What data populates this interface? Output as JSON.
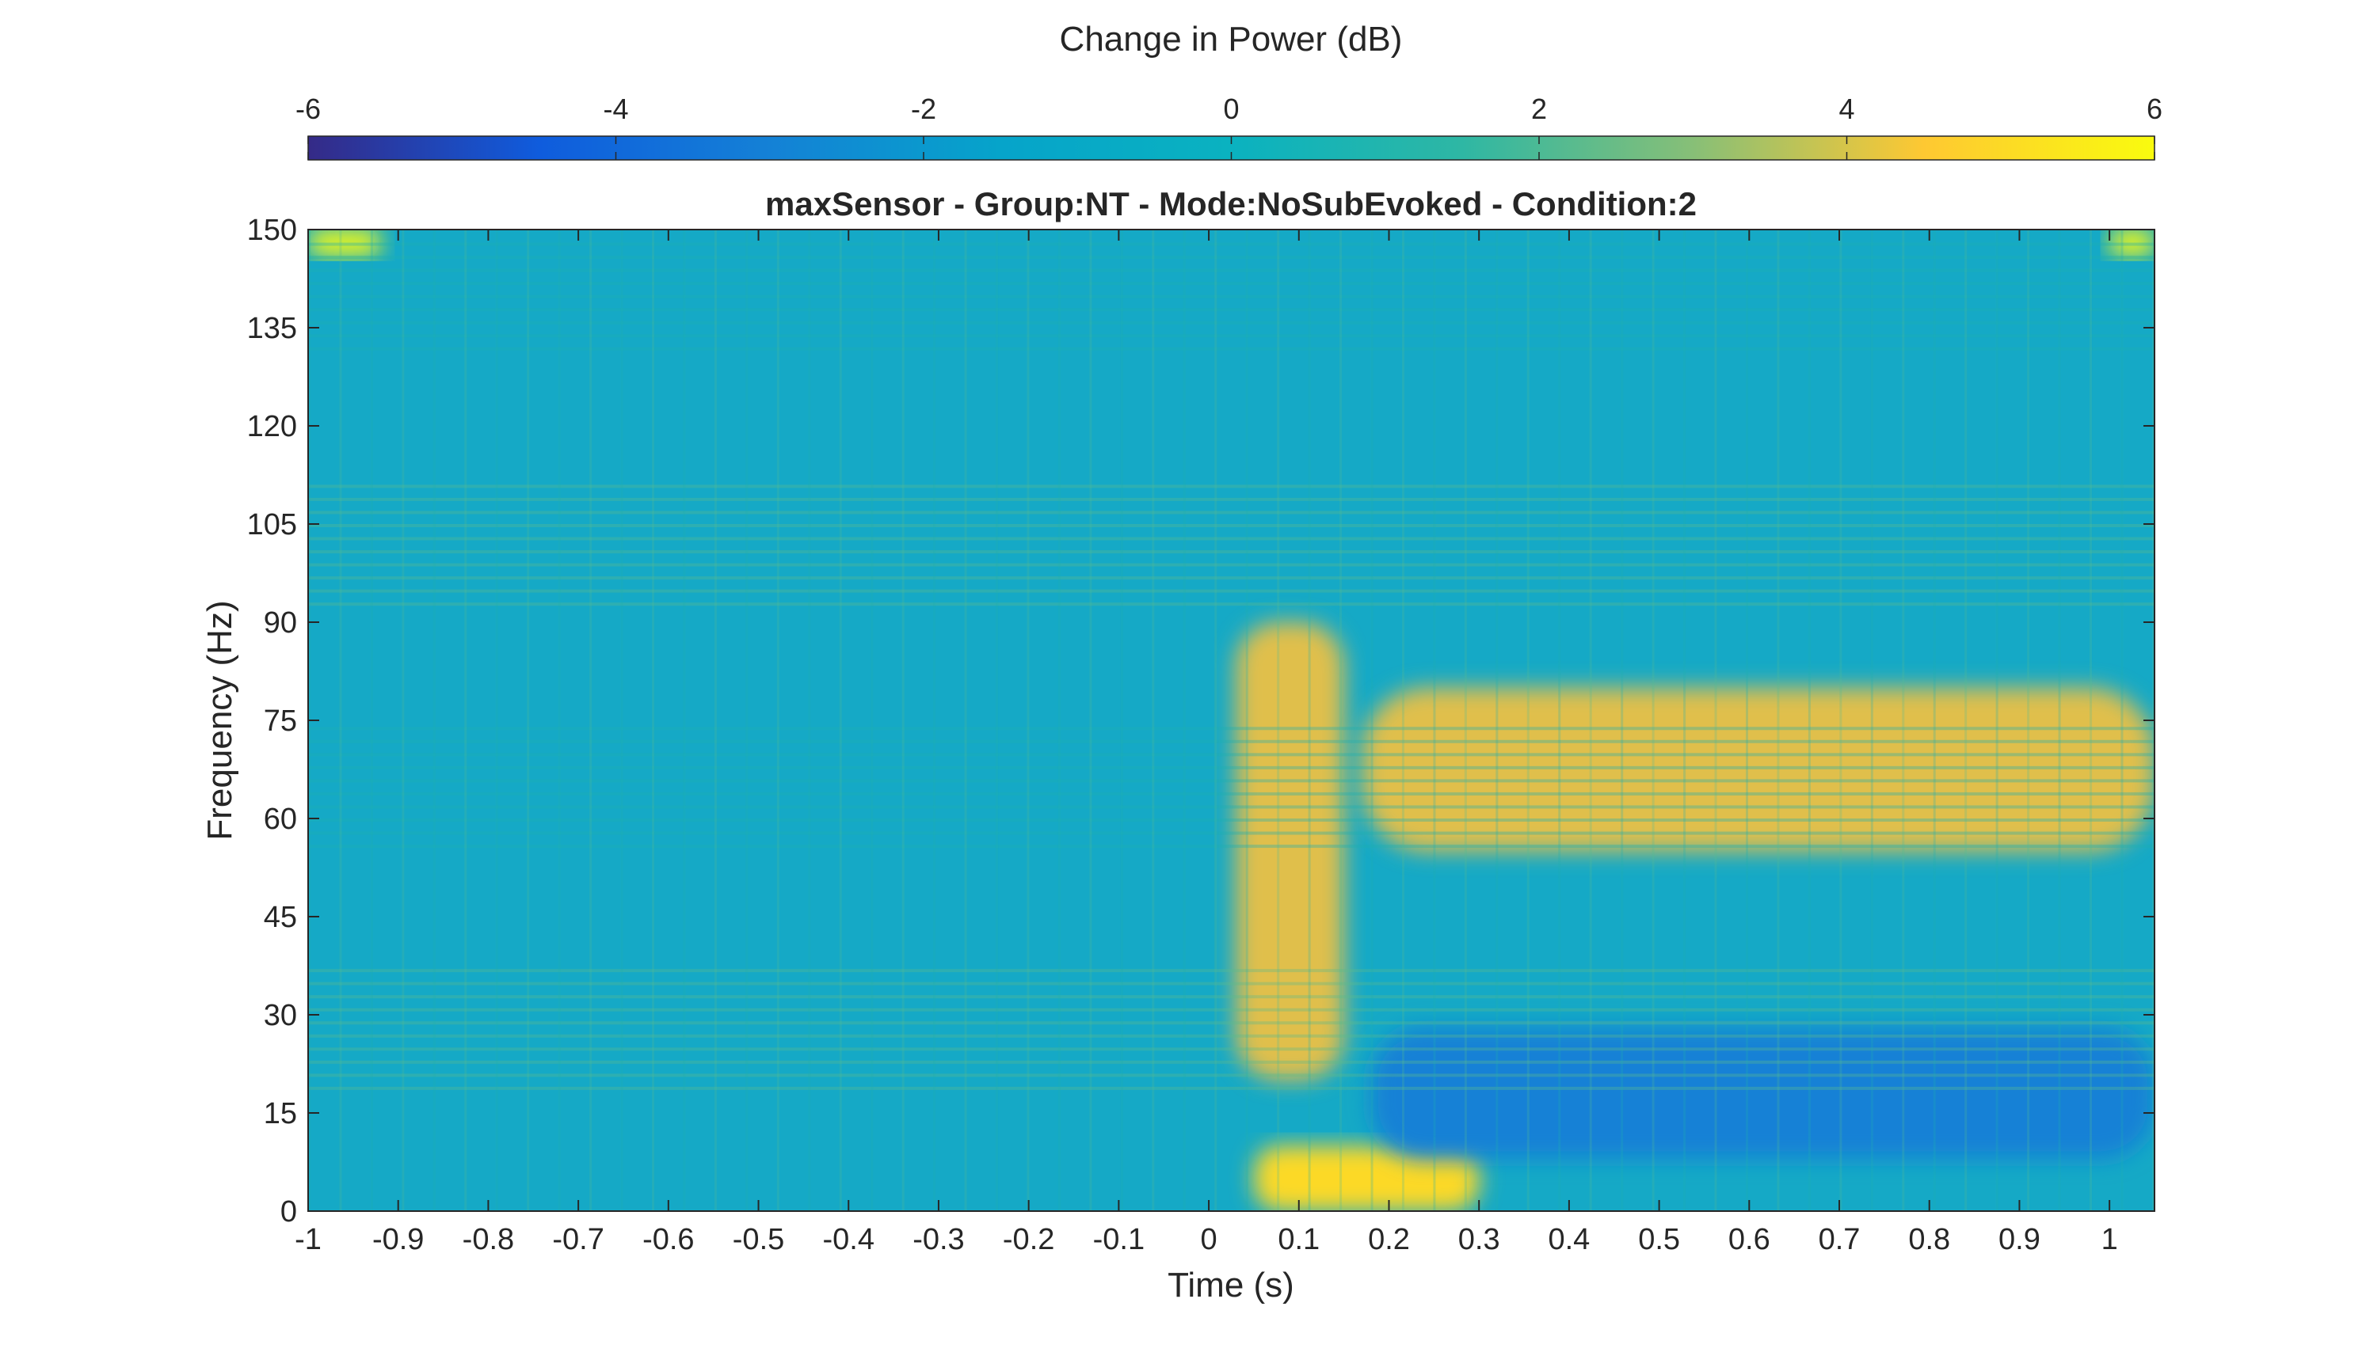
{
  "chart_data": {
    "type": "heatmap",
    "title": "maxSensor - Group:NT - Mode:NoSubEvoked - Condition:2",
    "xlabel": "Time (s)",
    "ylabel": "Frequency (Hz)",
    "xlim": [
      -1,
      1.05
    ],
    "ylim": [
      0,
      150
    ],
    "x_ticks": [
      -1,
      -0.9,
      -0.8,
      -0.7,
      -0.6,
      -0.5,
      -0.4,
      -0.3,
      -0.2,
      -0.1,
      0,
      0.1,
      0.2,
      0.3,
      0.4,
      0.5,
      0.6,
      0.7,
      0.8,
      0.9,
      1
    ],
    "x_tick_labels": [
      "-1",
      "-0.9",
      "-0.8",
      "-0.7",
      "-0.6",
      "-0.5",
      "-0.4",
      "-0.3",
      "-0.2",
      "-0.1",
      "0",
      "0.1",
      "0.2",
      "0.3",
      "0.4",
      "0.5",
      "0.6",
      "0.7",
      "0.8",
      "0.9",
      "1"
    ],
    "y_ticks": [
      0,
      15,
      30,
      45,
      60,
      75,
      90,
      105,
      120,
      135,
      150
    ],
    "y_tick_labels": [
      "0",
      "15",
      "30",
      "45",
      "60",
      "75",
      "90",
      "105",
      "120",
      "135",
      "150"
    ],
    "colorbar": {
      "label": "Change in Power (dB)",
      "location": "top",
      "range": [
        -6,
        6
      ],
      "ticks": [
        -6,
        -4,
        -2,
        0,
        2,
        4,
        6
      ],
      "tick_labels": [
        "-6",
        "-4",
        "-2",
        "0",
        "2",
        "4",
        "6"
      ],
      "colormap": "parula",
      "colors": [
        "#352a87",
        "#0f5cdd",
        "#1481d6",
        "#06a4ca",
        "#2eb7a4",
        "#87bf77",
        "#d1bb59",
        "#fec832",
        "#f9fb0e"
      ]
    },
    "features": [
      {
        "description": "broadband increase around stimulus onset",
        "time": [
          0.03,
          0.15
        ],
        "freq": [
          20,
          90
        ],
        "value_db": 3.5
      },
      {
        "description": "low-frequency evoked peak",
        "time": [
          0.05,
          0.3
        ],
        "freq": [
          0,
          10
        ],
        "value_db": 5
      },
      {
        "description": "sustained gamma increase",
        "time": [
          0.17,
          1.05
        ],
        "freq": [
          55,
          80
        ],
        "value_db": 3.5
      },
      {
        "description": "beta/alpha decrease",
        "time": [
          0.18,
          1.05
        ],
        "freq": [
          8,
          28
        ],
        "value_db": -3
      },
      {
        "description": "edge effect top corners",
        "time": [
          -1,
          -0.92
        ],
        "freq": [
          146,
          150
        ],
        "value_db": 6
      },
      {
        "description": "edge effect top right corner",
        "time": [
          1.0,
          1.05
        ],
        "freq": [
          146,
          150
        ],
        "value_db": 6
      },
      {
        "description": "baseline power",
        "time": [
          -1,
          1.05
        ],
        "freq": [
          0,
          150
        ],
        "value_db": 0
      }
    ]
  }
}
